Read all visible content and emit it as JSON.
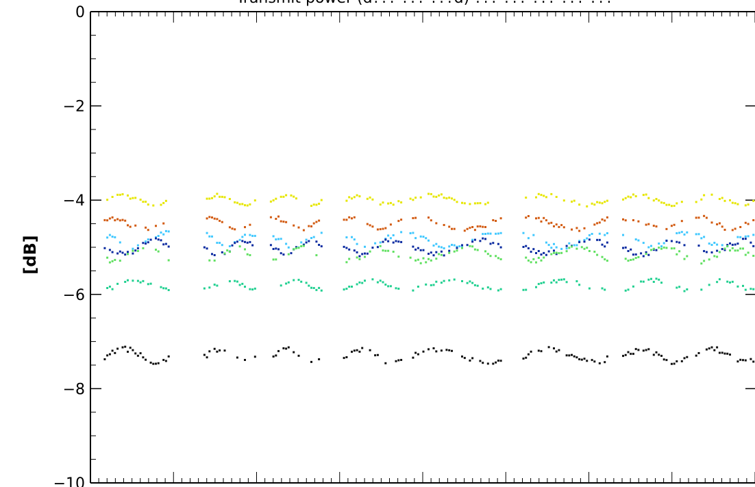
{
  "chart_data": {
    "type": "scatter",
    "title": "Transmit power (d??? ??? ???d) ??? ??? ??? ??? ???",
    "xlabel": "",
    "ylabel": "[dB]",
    "ylim": [
      -10,
      0
    ],
    "yticks": [
      {
        "value": 0,
        "label": "0"
      },
      {
        "value": -2,
        "label": "−2"
      },
      {
        "value": -4,
        "label": "−4"
      },
      {
        "value": -6,
        "label": "−6"
      },
      {
        "value": -8,
        "label": "−8"
      },
      {
        "value": -10,
        "label": "−10"
      }
    ],
    "x_tick_labels_visible": false,
    "grid": false,
    "clusters": [
      [
        0.02,
        0.12
      ],
      [
        0.17,
        0.25
      ],
      [
        0.27,
        0.35
      ],
      [
        0.38,
        0.47
      ],
      [
        0.48,
        0.62
      ],
      [
        0.65,
        0.78
      ],
      [
        0.8,
        0.9
      ],
      [
        0.91,
        1.0
      ]
    ],
    "series": [
      {
        "color": "#e6e600",
        "level": -4.0,
        "amp": 0.1
      },
      {
        "color": "#d25a10",
        "level": -4.5,
        "amp": 0.12
      },
      {
        "color": "#40c8ff",
        "level": -4.85,
        "amp": 0.14
      },
      {
        "color": "#0a2aa0",
        "level": -5.0,
        "amp": 0.14
      },
      {
        "color": "#60e060",
        "level": -5.15,
        "amp": 0.14
      },
      {
        "color": "#20d090",
        "level": -5.8,
        "amp": 0.1
      },
      {
        "color": "#111111",
        "level": -7.3,
        "amp": 0.14
      }
    ]
  }
}
